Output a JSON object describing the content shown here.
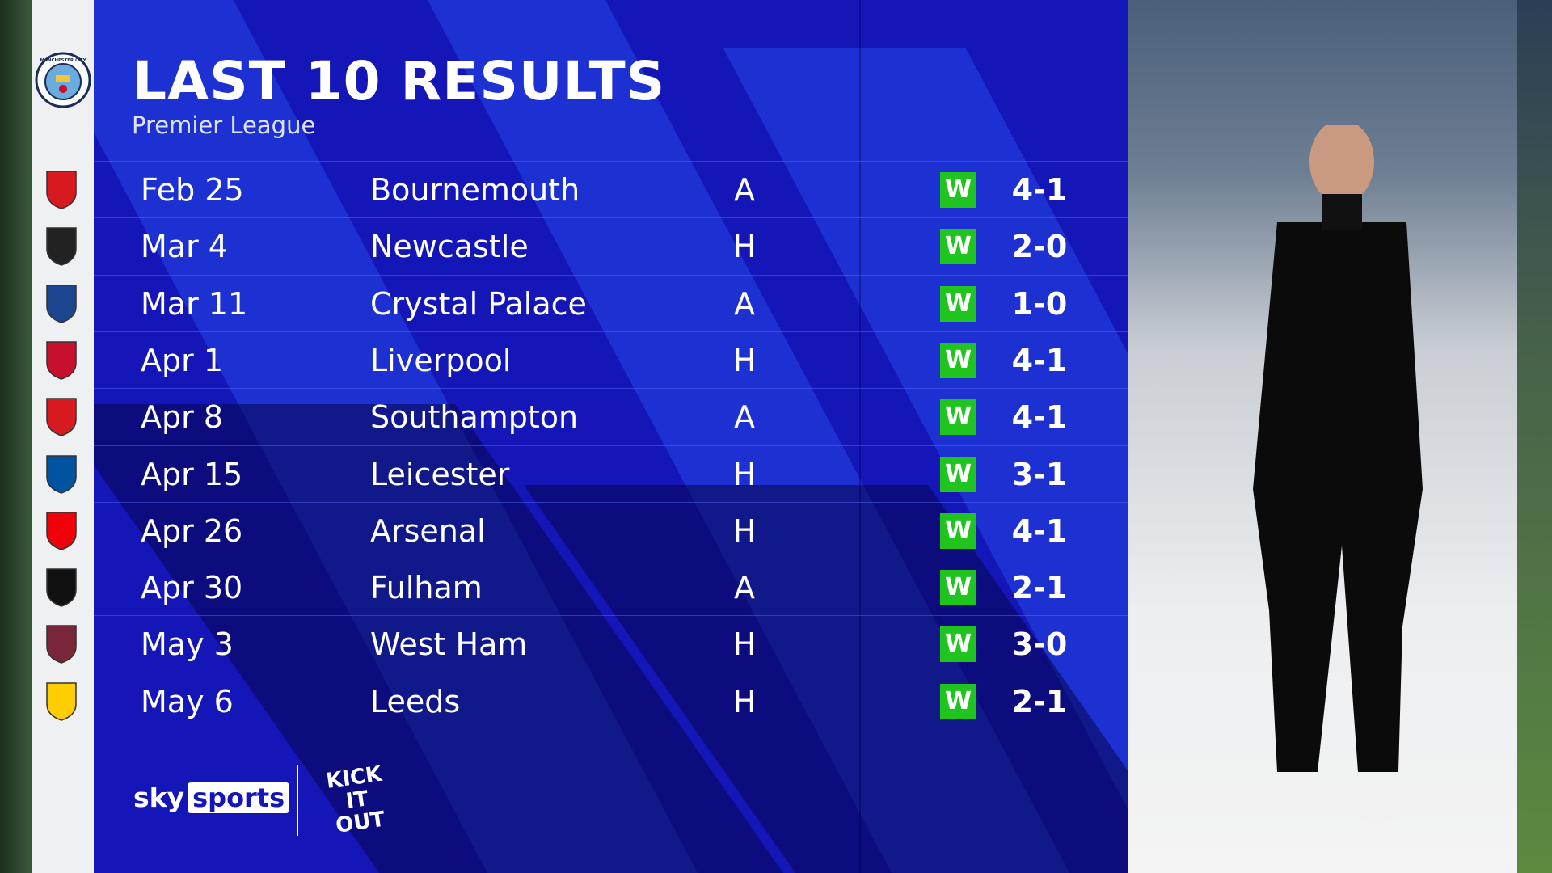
{
  "header": {
    "title": "LAST 10 RESULTS",
    "subtitle": "Premier League"
  },
  "team": {
    "crest": "manchester-city-crest",
    "crest_text": "MANCHESTER CITY"
  },
  "colors": {
    "panel": "#1416b8",
    "win": "#1fc41f"
  },
  "results": [
    {
      "date": "Feb 25",
      "opponent": "Bournemouth",
      "venue": "A",
      "result": "W",
      "score": "4-1",
      "badge_color": "#d71920"
    },
    {
      "date": "Mar 4",
      "opponent": "Newcastle",
      "venue": "H",
      "result": "W",
      "score": "2-0",
      "badge_color": "#222222"
    },
    {
      "date": "Mar 11",
      "opponent": "Crystal Palace",
      "venue": "A",
      "result": "W",
      "score": "1-0",
      "badge_color": "#1b458f"
    },
    {
      "date": "Apr 1",
      "opponent": "Liverpool",
      "venue": "H",
      "result": "W",
      "score": "4-1",
      "badge_color": "#c8102e"
    },
    {
      "date": "Apr 8",
      "opponent": "Southampton",
      "venue": "A",
      "result": "W",
      "score": "4-1",
      "badge_color": "#d71920"
    },
    {
      "date": "Apr 15",
      "opponent": "Leicester",
      "venue": "H",
      "result": "W",
      "score": "3-1",
      "badge_color": "#0053a0"
    },
    {
      "date": "Apr 26",
      "opponent": "Arsenal",
      "venue": "H",
      "result": "W",
      "score": "4-1",
      "badge_color": "#ef0107"
    },
    {
      "date": "Apr 30",
      "opponent": "Fulham",
      "venue": "A",
      "result": "W",
      "score": "2-1",
      "badge_color": "#111111"
    },
    {
      "date": "May 3",
      "opponent": "West Ham",
      "venue": "H",
      "result": "W",
      "score": "3-0",
      "badge_color": "#7a263a"
    },
    {
      "date": "May 6",
      "opponent": "Leeds",
      "venue": "H",
      "result": "W",
      "score": "2-1",
      "badge_color": "#ffcd00"
    }
  ],
  "branding": {
    "sky": "sky",
    "sports": "sports",
    "kick_it_out": "KICK IT OUT"
  }
}
